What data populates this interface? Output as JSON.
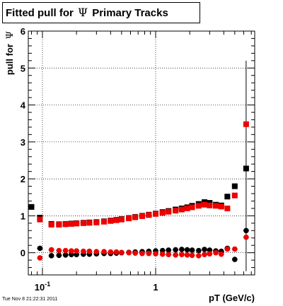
{
  "header": {
    "title_pre": "Fitted pull for",
    "title_symbol": "Ψ",
    "title_post": "Primary Tracks"
  },
  "footer": {
    "timestamp": "Tue Nov  8 21:22:31 2011"
  },
  "chart_data": {
    "type": "scatter",
    "xscale": "log",
    "xlim": [
      0.075,
      7.5
    ],
    "ylim": [
      -0.6,
      6
    ],
    "grid": true,
    "xlabel": "pT (GeV/c)",
    "ylabel_pre": "pull for",
    "ylabel_symbol": "Ψ",
    "yticks": [
      0,
      1,
      2,
      3,
      4,
      5,
      6
    ],
    "xticks": [
      {
        "value": 0.1,
        "base": "10",
        "exp": "-1"
      },
      {
        "value": 1,
        "base": "1",
        "exp": ""
      }
    ],
    "series": [
      {
        "color": "#000000",
        "marker": "square",
        "points": [
          [
            0.08,
            1.24
          ],
          [
            0.095,
            0.95
          ],
          [
            0.12,
            0.78
          ],
          [
            0.14,
            0.77
          ],
          [
            0.16,
            0.78
          ],
          [
            0.18,
            0.79
          ],
          [
            0.2,
            0.8
          ],
          [
            0.23,
            0.81
          ],
          [
            0.26,
            0.82
          ],
          [
            0.3,
            0.83
          ],
          [
            0.35,
            0.85
          ],
          [
            0.4,
            0.87
          ],
          [
            0.45,
            0.89
          ],
          [
            0.5,
            0.91
          ],
          [
            0.58,
            0.94
          ],
          [
            0.66,
            0.97
          ],
          [
            0.76,
            1.0
          ],
          [
            0.87,
            1.03
          ],
          [
            1.0,
            1.06
          ],
          [
            1.15,
            1.1
          ],
          [
            1.3,
            1.13
          ],
          [
            1.5,
            1.17
          ],
          [
            1.7,
            1.2
          ],
          [
            1.9,
            1.23
          ],
          [
            2.1,
            1.27
          ],
          [
            2.4,
            1.32
          ],
          [
            2.7,
            1.37
          ],
          [
            3.0,
            1.35
          ],
          [
            3.4,
            1.3
          ],
          [
            3.8,
            1.28
          ],
          [
            4.3,
            1.52
          ],
          [
            5.0,
            1.8
          ],
          [
            6.3,
            2.28
          ]
        ]
      },
      {
        "color": "#000000",
        "marker": "circle",
        "points": [
          [
            0.095,
            0.12
          ],
          [
            0.12,
            -0.08
          ],
          [
            0.14,
            -0.07
          ],
          [
            0.16,
            -0.06
          ],
          [
            0.18,
            -0.05
          ],
          [
            0.2,
            -0.05
          ],
          [
            0.23,
            -0.04
          ],
          [
            0.26,
            -0.04
          ],
          [
            0.3,
            -0.03
          ],
          [
            0.35,
            -0.02
          ],
          [
            0.4,
            -0.02
          ],
          [
            0.45,
            -0.01
          ],
          [
            0.5,
            0.0
          ],
          [
            0.58,
            0.01
          ],
          [
            0.66,
            0.02
          ],
          [
            0.76,
            0.03
          ],
          [
            0.87,
            0.04
          ],
          [
            1.0,
            0.05
          ],
          [
            1.15,
            0.06
          ],
          [
            1.3,
            0.07
          ],
          [
            1.5,
            0.08
          ],
          [
            1.7,
            0.09
          ],
          [
            1.9,
            0.08
          ],
          [
            2.1,
            0.07
          ],
          [
            2.4,
            0.06
          ],
          [
            2.7,
            0.09
          ],
          [
            3.0,
            0.07
          ],
          [
            3.4,
            0.05
          ],
          [
            3.8,
            0.04
          ],
          [
            4.3,
            0.12
          ],
          [
            5.0,
            -0.18
          ],
          [
            6.3,
            0.6
          ]
        ]
      },
      {
        "color": "#ee0000",
        "marker": "square",
        "points": [
          [
            0.095,
            0.9
          ],
          [
            0.12,
            0.76
          ],
          [
            0.14,
            0.76
          ],
          [
            0.16,
            0.77
          ],
          [
            0.18,
            0.78
          ],
          [
            0.2,
            0.79
          ],
          [
            0.23,
            0.8
          ],
          [
            0.26,
            0.81
          ],
          [
            0.3,
            0.82
          ],
          [
            0.35,
            0.84
          ],
          [
            0.4,
            0.86
          ],
          [
            0.45,
            0.88
          ],
          [
            0.5,
            0.9
          ],
          [
            0.58,
            0.93
          ],
          [
            0.66,
            0.96
          ],
          [
            0.76,
            0.99
          ],
          [
            0.87,
            1.02
          ],
          [
            1.0,
            1.05
          ],
          [
            1.15,
            1.08
          ],
          [
            1.3,
            1.11
          ],
          [
            1.5,
            1.14
          ],
          [
            1.7,
            1.17
          ],
          [
            1.9,
            1.2
          ],
          [
            2.1,
            1.23
          ],
          [
            2.4,
            1.27
          ],
          [
            2.7,
            1.3
          ],
          [
            3.0,
            1.28
          ],
          [
            3.4,
            1.27
          ],
          [
            3.8,
            1.25
          ],
          [
            4.3,
            1.2
          ],
          [
            5.0,
            1.55
          ],
          [
            6.3,
            3.48
          ]
        ]
      },
      {
        "color": "#ee0000",
        "marker": "circle",
        "points": [
          [
            0.095,
            -0.14
          ],
          [
            0.12,
            0.08
          ],
          [
            0.14,
            0.06
          ],
          [
            0.16,
            0.06
          ],
          [
            0.18,
            0.05
          ],
          [
            0.2,
            0.05
          ],
          [
            0.23,
            0.04
          ],
          [
            0.26,
            0.04
          ],
          [
            0.3,
            0.03
          ],
          [
            0.35,
            0.03
          ],
          [
            0.4,
            0.02
          ],
          [
            0.45,
            0.02
          ],
          [
            0.5,
            0.01
          ],
          [
            0.58,
            0.0
          ],
          [
            0.66,
            -0.01
          ],
          [
            0.76,
            -0.02
          ],
          [
            0.87,
            -0.02
          ],
          [
            1.0,
            -0.03
          ],
          [
            1.15,
            -0.04
          ],
          [
            1.3,
            -0.05
          ],
          [
            1.5,
            -0.06
          ],
          [
            1.7,
            -0.05
          ],
          [
            1.9,
            -0.06
          ],
          [
            2.1,
            -0.07
          ],
          [
            2.4,
            -0.08
          ],
          [
            2.7,
            -0.05
          ],
          [
            3.0,
            -0.03
          ],
          [
            3.4,
            0.0
          ],
          [
            3.8,
            -0.04
          ],
          [
            4.3,
            0.1
          ],
          [
            5.0,
            0.1
          ],
          [
            6.3,
            0.42
          ]
        ]
      }
    ]
  }
}
